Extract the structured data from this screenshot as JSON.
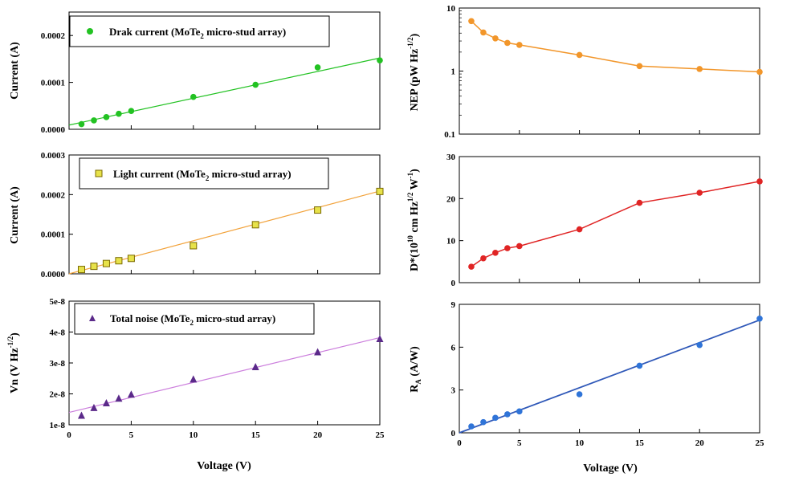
{
  "colors": {
    "dark": "#22c222",
    "light": "#e7e24a",
    "light_edge": "#7a6a00",
    "light_fit": "#f2a23a",
    "noise": "#5b2a8a",
    "noise_fit": "#cc7fdd",
    "nep": "#f2962a",
    "dstar": "#e02424",
    "ra": "#2f74d8",
    "ra_fit": "#2f58b8"
  },
  "shared": {
    "xlabel_left": "Voltage (V)",
    "xlabel_right": "Voltage (V)",
    "x_ticks": [
      "0",
      "5",
      "10",
      "15",
      "20",
      "25"
    ]
  },
  "chart_data": [
    {
      "id": "dark",
      "type": "scatter",
      "ylabel": "Current (A)",
      "legend": {
        "prefix": "Drak current (MoTe",
        "sub": "2",
        "suffix": " micro-stud array)"
      },
      "xlim": [
        0,
        25
      ],
      "ylim": [
        0,
        0.00025
      ],
      "y_ticks": [
        "0.0000",
        "0.0001",
        "0.0002"
      ],
      "y_tick_values": [
        0,
        0.0001,
        0.0002
      ],
      "x": [
        1,
        2,
        3,
        4,
        5,
        10,
        15,
        20,
        25
      ],
      "y": [
        1.1e-05,
        1.9e-05,
        2.6e-05,
        3.3e-05,
        3.9e-05,
        6.9e-05,
        9.5e-05,
        0.000132,
        0.000147
      ],
      "fit": [
        [
          0,
          9e-06
        ],
        [
          25,
          0.000152
        ]
      ]
    },
    {
      "id": "light",
      "type": "scatter",
      "ylabel": "Current (A)",
      "legend": {
        "prefix": "Light current (MoTe",
        "sub": "2",
        "suffix": " micro-stud array)"
      },
      "xlim": [
        0,
        25
      ],
      "ylim": [
        0,
        0.0003
      ],
      "y_ticks": [
        "0.0000",
        "0.0001",
        "0.0002",
        "0.0003"
      ],
      "y_tick_values": [
        0,
        0.0001,
        0.0002,
        0.0003
      ],
      "x": [
        1,
        2,
        3,
        4,
        5,
        10,
        15,
        20,
        25
      ],
      "y": [
        1.1e-05,
        1.9e-05,
        2.6e-05,
        3.3e-05,
        3.9e-05,
        7.1e-05,
        0.000124,
        0.000161,
        0.000208
      ],
      "fit": [
        [
          0,
          0.0
        ],
        [
          25,
          0.000209
        ]
      ]
    },
    {
      "id": "noise",
      "type": "scatter",
      "ylabel": "Vn (V Hz",
      "ylabel_sup": "-1/2",
      "ylabel_end": ")",
      "legend": {
        "prefix": "Total noise (MoTe",
        "sub": "2",
        "suffix": " micro-stud array)"
      },
      "xlim": [
        0,
        25
      ],
      "ylim": [
        1e-08,
        5e-08
      ],
      "y_ticks": [
        "1e-8",
        "2e-8",
        "3e-8",
        "4e-8",
        "5e-8"
      ],
      "y_tick_values": [
        1e-08,
        2e-08,
        3e-08,
        4e-08,
        5e-08
      ],
      "x": [
        1,
        2,
        3,
        4,
        5,
        10,
        15,
        20,
        25
      ],
      "y": [
        1.3e-08,
        1.55e-08,
        1.7e-08,
        1.85e-08,
        1.98e-08,
        2.47e-08,
        2.87e-08,
        3.35e-08,
        3.78e-08
      ],
      "fit": [
        [
          0,
          1.4e-08
        ],
        [
          25,
          3.82e-08
        ]
      ]
    },
    {
      "id": "nep",
      "type": "line",
      "ylabel": "NEP (pW Hz",
      "ylabel_sup": "-1/2",
      "ylabel_end": ")",
      "log_y": true,
      "xlim": [
        0,
        25
      ],
      "ylim": [
        0.1,
        10
      ],
      "y_ticks": [
        "0.1",
        "1",
        "10"
      ],
      "y_tick_values": [
        0.1,
        1,
        10
      ],
      "x": [
        1,
        2,
        3,
        4,
        5,
        10,
        15,
        20,
        25
      ],
      "y": [
        6.2,
        4.1,
        3.3,
        2.8,
        2.6,
        1.8,
        1.2,
        1.08,
        0.97
      ]
    },
    {
      "id": "dstar",
      "type": "line",
      "ylabel": "D*(10",
      "ylabel_sup1": "10",
      "ylabel_mid": " cm Hz",
      "ylabel_sup2": "1/2",
      "ylabel_mid2": " W",
      "ylabel_sup3": "-1",
      "ylabel_end": ")",
      "xlim": [
        0,
        25
      ],
      "ylim": [
        0,
        30
      ],
      "y_ticks": [
        "0",
        "10",
        "20",
        "30"
      ],
      "y_tick_values": [
        0,
        10,
        20,
        30
      ],
      "x": [
        1,
        2,
        3,
        4,
        5,
        10,
        15,
        20,
        25
      ],
      "y": [
        3.8,
        5.8,
        7.1,
        8.2,
        8.7,
        12.7,
        19.0,
        21.4,
        24.1
      ]
    },
    {
      "id": "ra",
      "type": "scatter",
      "ylabel": "R",
      "ylabel_sub": "A",
      "ylabel_end": " (A/W)",
      "xlim": [
        0,
        25
      ],
      "ylim": [
        0,
        9
      ],
      "y_ticks": [
        "0",
        "3",
        "6",
        "9"
      ],
      "y_tick_values": [
        0,
        3,
        6,
        9
      ],
      "x": [
        1,
        2,
        3,
        4,
        5,
        10,
        15,
        20,
        25
      ],
      "y": [
        0.45,
        0.75,
        1.05,
        1.3,
        1.5,
        2.7,
        4.7,
        6.15,
        8.0
      ],
      "fit": [
        [
          0,
          0.0
        ],
        [
          25,
          7.9
        ]
      ]
    }
  ]
}
